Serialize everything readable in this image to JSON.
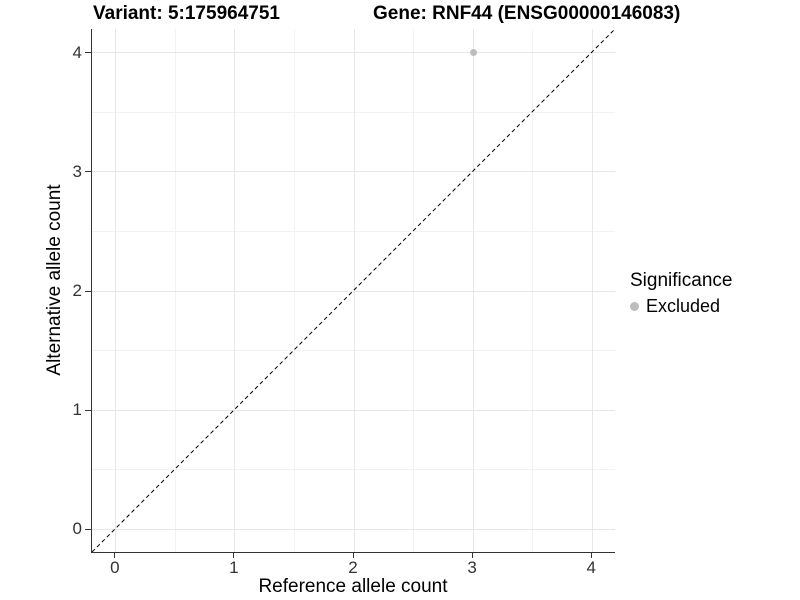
{
  "chart_data": {
    "type": "scatter",
    "titles": [
      "Variant: 5:175964751",
      "Gene: RNF44 (ENSG00000146083)"
    ],
    "xlabel": "Reference allele count",
    "ylabel": "Alternative allele count",
    "xlim": [
      -0.2,
      4.2
    ],
    "ylim": [
      -0.2,
      4.2
    ],
    "x_ticks": [
      0,
      1,
      2,
      3,
      4
    ],
    "y_ticks": [
      0,
      1,
      2,
      3,
      4
    ],
    "x_minor": [
      0.5,
      1.5,
      2.5,
      3.5
    ],
    "y_minor": [
      0.5,
      1.5,
      2.5,
      3.5
    ],
    "grid": true,
    "legend_position": "right",
    "series": [
      {
        "name": "Excluded",
        "color": "#bdbdbd",
        "points": [
          {
            "x": 3,
            "y": 4
          }
        ]
      }
    ],
    "reference_line": {
      "kind": "identity",
      "style": "dashed",
      "color": "#000000",
      "from": [
        -0.2,
        -0.2
      ],
      "to": [
        4.2,
        4.2
      ]
    },
    "legend": {
      "title": "Significance",
      "items": [
        {
          "label": "Excluded",
          "color": "#bdbdbd"
        }
      ]
    }
  },
  "colors": {
    "background": "#ffffff",
    "grid_major": "#e7e7e7",
    "grid_minor": "#f2f2f2",
    "axis_line": "#333333",
    "tick_text": "#333333",
    "text": "#000000"
  }
}
